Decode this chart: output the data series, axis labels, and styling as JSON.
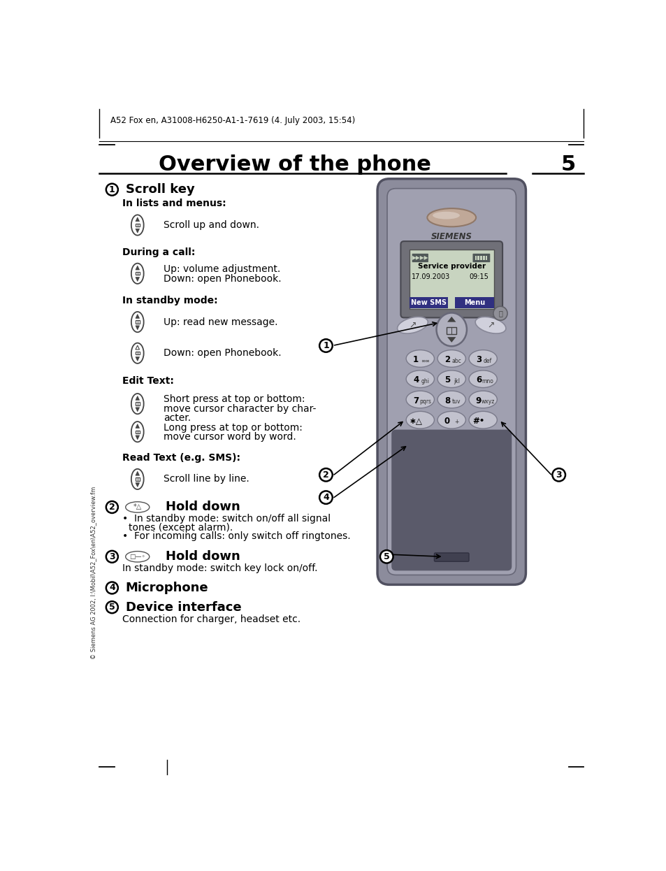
{
  "page_header": "A52 Fox en, A31008-H6250-A1-1-7619 (4. July 2003, 15:54)",
  "page_number": "5",
  "title": "Overview of the phone",
  "bg_color": "#ffffff",
  "text_color": "#000000",
  "sidebar_text": "© Siemens AG 2002, I:\\Mobil\\A52_Fox\\en\\A52_overview.fm",
  "section1_title": "Scroll key",
  "in_lists": "In lists and menus:",
  "in_lists_desc": "Scroll up and down.",
  "during_call": "During a call:",
  "during_call_desc1": "Up: volume adjustment.",
  "during_call_desc2": "Down: open Phonebook.",
  "standby": "In standby mode:",
  "standby_desc1": "Up: read new message.",
  "standby_desc2": "Down: open Phonebook.",
  "edit_text": "Edit Text:",
  "edit_desc1": "Short press at top or bottom:",
  "edit_desc2": "move cursor character by char-",
  "edit_desc3": "acter.",
  "edit_desc4": "Long press at top or bottom:",
  "edit_desc5": "move cursor word by word.",
  "read_text": "Read Text (e.g. SMS):",
  "read_desc": "Scroll line by line.",
  "section2_title": "Hold down",
  "section2_bullet1": "In standby mode: switch on/off all signal",
  "section2_bullet1b": "tones (except alarm).",
  "section2_bullet2": "For incoming calls: only switch off ringtones.",
  "section3_title": "Hold down",
  "section3_desc": "In standby mode: switch key lock on/off.",
  "section4_title": "Microphone",
  "section5_title": "Device interface",
  "section5_desc": "Connection for charger, headset etc.",
  "phone_color_body": "#8a8a9a",
  "phone_color_dark": "#555565",
  "phone_color_mid": "#9a9aaa",
  "phone_color_light": "#c0c0cc",
  "phone_color_screen_bg": "#b8c4b0",
  "phone_color_key": "#c8c8d4",
  "phone_color_key_dark": "#9090a0",
  "phone_color_btn": "#404060",
  "screen_service": "Service provider",
  "screen_date": "17.09.2003",
  "screen_time": "09:15",
  "screen_btn1": "New SMS",
  "screen_btn2": "Menu",
  "key_labels": [
    [
      "1",
      "∞∞",
      "2",
      "abc",
      "3",
      "def"
    ],
    [
      "4",
      "ghi",
      "5",
      "jkl",
      "6",
      "mno"
    ],
    [
      "7",
      "pqrs",
      "8",
      "tuv",
      "9",
      "wxyz"
    ],
    [
      "*",
      "△",
      "0",
      "+",
      "#",
      "•—"
    ]
  ]
}
